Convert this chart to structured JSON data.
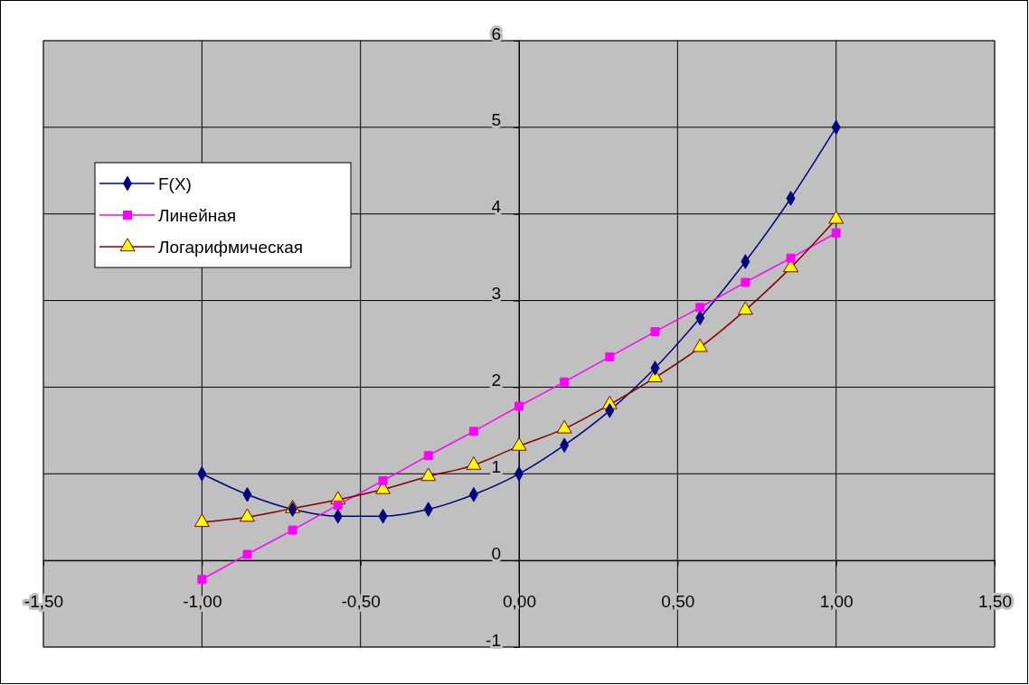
{
  "chart_data": {
    "type": "line",
    "x": [
      -1,
      -0.857,
      -0.714,
      -0.571,
      -0.429,
      -0.286,
      -0.143,
      0,
      0.143,
      0.286,
      0.429,
      0.571,
      0.714,
      0.857,
      1
    ],
    "series": [
      {
        "name": "F(X)",
        "color": "#000080",
        "marker": "diamond",
        "values": [
          1,
          0.76,
          0.59,
          0.51,
          0.51,
          0.59,
          0.76,
          1,
          1.33,
          1.73,
          2.22,
          2.8,
          3.45,
          4.18,
          5
        ]
      },
      {
        "name": "Линейная",
        "color": "#ff00ff",
        "marker": "square",
        "values": [
          -0.22,
          0.07,
          0.35,
          0.64,
          0.92,
          1.21,
          1.49,
          1.78,
          2.06,
          2.35,
          2.64,
          2.92,
          3.21,
          3.49,
          3.78
        ]
      },
      {
        "name": "Логарифмическая",
        "color": "#800000",
        "marker": "triangle",
        "values": [
          0.44,
          0.5,
          0.6,
          0.7,
          0.82,
          0.97,
          1.1,
          1.32,
          1.52,
          1.8,
          2.11,
          2.46,
          2.89,
          3.38,
          3.94
        ]
      }
    ],
    "xlim": [
      -1.5,
      1.5
    ],
    "xticks": [
      {
        "value": -1.5,
        "label": "-1,50"
      },
      {
        "value": -1,
        "label": "-1,00"
      },
      {
        "value": -0.5,
        "label": "-0,50"
      },
      {
        "value": 0,
        "label": "0,00"
      },
      {
        "value": 0.5,
        "label": "0,50"
      },
      {
        "value": 1,
        "label": "1,00"
      },
      {
        "value": 1.5,
        "label": "1,50"
      }
    ],
    "ylim": [
      -1,
      6
    ],
    "yticks": [
      -1,
      0,
      1,
      2,
      3,
      4,
      5,
      6
    ],
    "grid": true,
    "legend": "top left"
  }
}
